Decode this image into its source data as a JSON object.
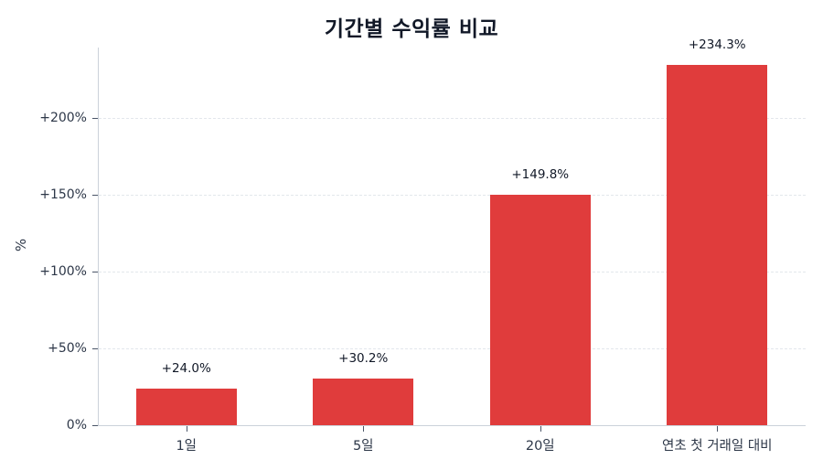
{
  "chart_data": {
    "type": "bar",
    "title": "기간별 수익률 비교",
    "xlabel": "",
    "ylabel": "%",
    "categories": [
      "1일",
      "5일",
      "20일",
      "연초 첫 거래일 대비"
    ],
    "values": [
      24.0,
      30.2,
      149.8,
      234.3
    ],
    "value_labels": [
      "+24.0%",
      "+30.2%",
      "+149.8%",
      "+234.3%"
    ],
    "ylim": [
      0,
      246
    ],
    "yticks": [
      0,
      50,
      100,
      150,
      200
    ],
    "ytick_labels": [
      "0%",
      "+50%",
      "+100%",
      "+150%",
      "+200%"
    ],
    "grid": {
      "y": true,
      "x": false,
      "style": "dashed"
    },
    "legend": null,
    "bar_color": "#e03c3c"
  },
  "colors": {
    "bar": "#e03c3c",
    "title": "#111827",
    "axis_text": "#2d3748",
    "axis_line": "#cbd2da",
    "gridline": "#e3e7ec"
  }
}
